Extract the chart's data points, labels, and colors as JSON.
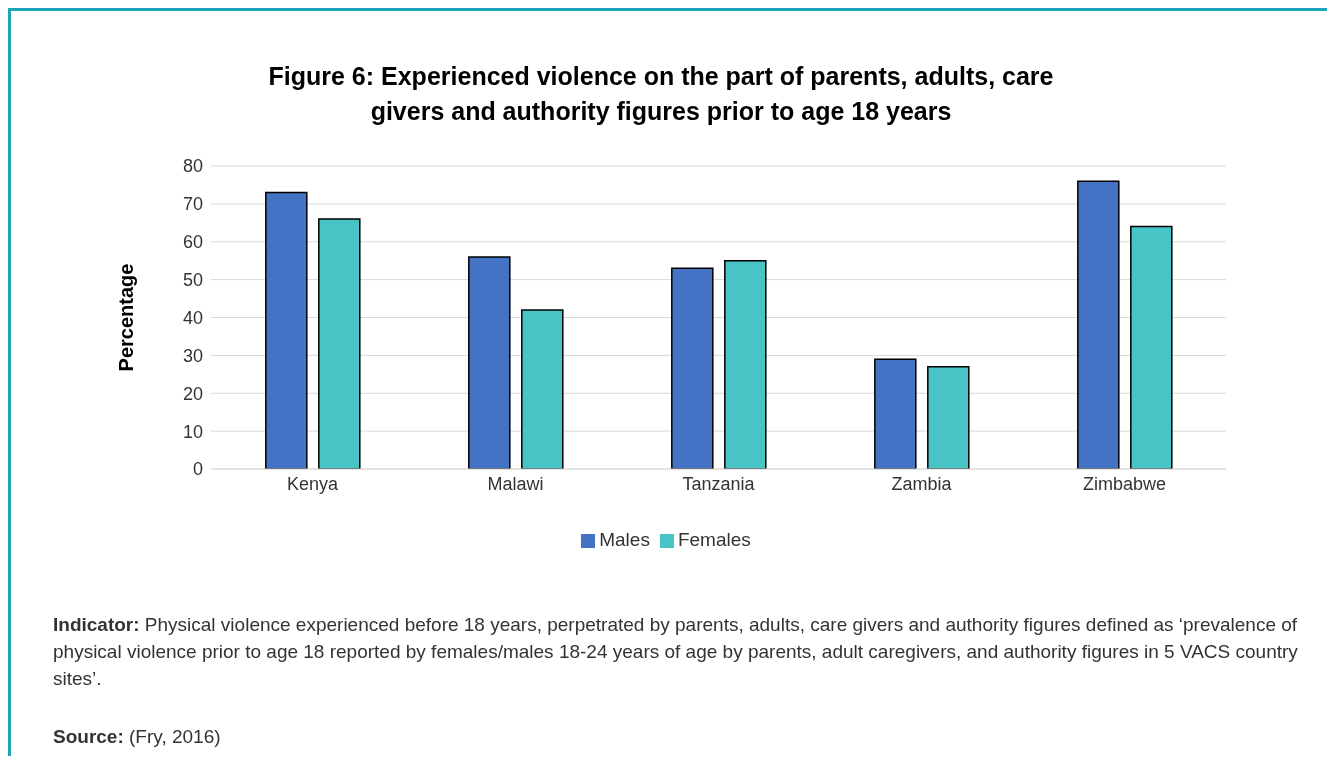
{
  "chart_data": {
    "type": "bar",
    "title": "Figure 6: Experienced violence on the part of parents, adults, care givers and authority figures prior to age 18 years",
    "ylabel": "Percentage",
    "categories": [
      "Kenya",
      "Malawi",
      "Tanzania",
      "Zambia",
      "Zimbabwe"
    ],
    "series": [
      {
        "name": "Males",
        "color": "#4472c4",
        "values": [
          73,
          56,
          53,
          29,
          76
        ]
      },
      {
        "name": "Females",
        "color": "#48c3c6",
        "values": [
          66,
          42,
          55,
          27,
          64
        ]
      }
    ],
    "ylim": [
      0,
      80
    ],
    "yticks": [
      0,
      10,
      20,
      30,
      40,
      50,
      60,
      70,
      80
    ],
    "grid": "y",
    "legend": "bottom",
    "annotations": [
      "Indicator: Physical violence experienced before 18 years, perpetrated by parents, adults, care givers and authority figures defined as ‘prevalence of physical violence prior to age 18 reported by females/males 18-24 years of age by parents, adult caregivers, and authority figures in 5 VACS country sites’.",
      "Source: (Fry, 2016)"
    ]
  }
}
